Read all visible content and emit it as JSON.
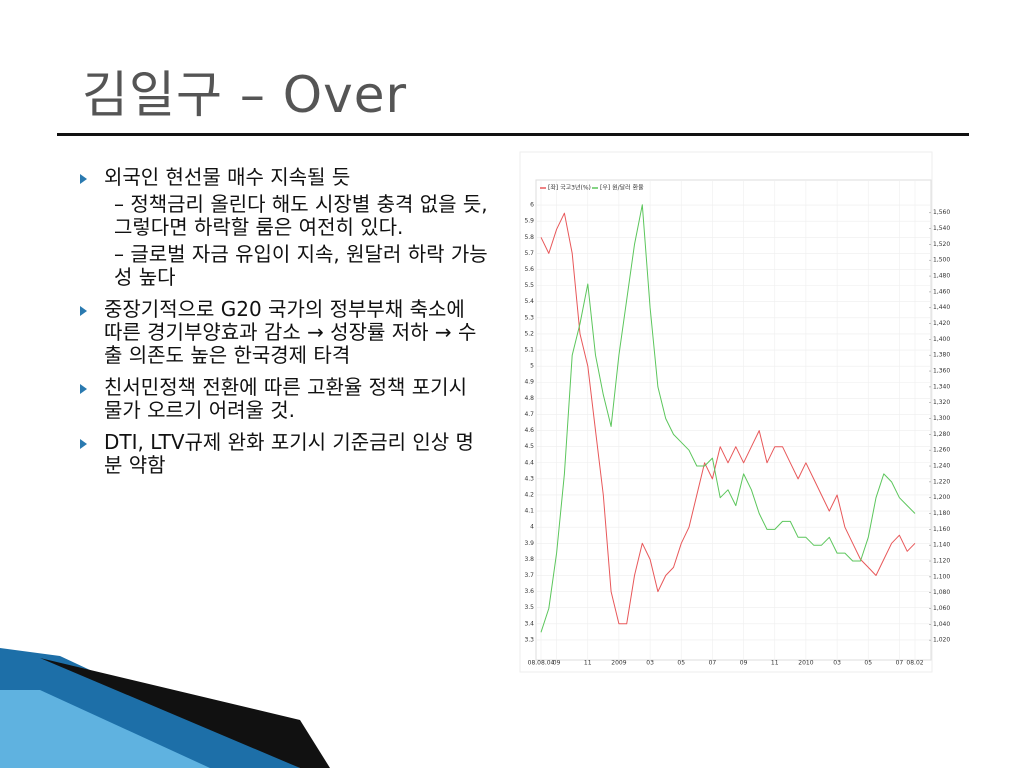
{
  "slide": {
    "title": "김일구 – Over",
    "bullets": [
      {
        "text": "외국인 현선물 매수 지속될 듯",
        "subs": [
          "– 정책금리 올린다 해도 시장별 충격 없을 듯, 그렇다면 하락할 룸은 여전히 있다.",
          "– 글로벌 자금 유입이 지속, 원달러 하락 가능성 높다"
        ]
      },
      {
        "text": "중장기적으로 G20 국가의 정부부채 축소에 따른 경기부양효과 감소 → 성장률 저하 → 수출 의존도 높은 한국경제 타격"
      },
      {
        "text": "친서민정책 전환에 따른 고환율 정책 포기시 물가 오르기 어려울 것."
      },
      {
        "text": "DTI, LTV규제 완화 포기시 기준금리 인상 명분 약함"
      }
    ]
  },
  "chart_data": {
    "type": "line",
    "x": [
      0,
      1,
      2,
      3,
      4,
      5,
      6,
      7,
      8,
      9,
      10,
      11,
      12,
      13,
      14,
      15,
      16,
      17,
      18,
      19,
      20,
      21,
      22,
      23,
      24,
      25,
      26,
      27,
      28,
      29,
      30,
      31,
      32,
      33,
      34,
      35,
      36,
      37,
      38,
      39,
      40,
      41,
      42,
      43,
      44,
      45,
      46,
      47,
      48
    ],
    "xlim": [
      0,
      48
    ],
    "xticks": [
      {
        "value": 0,
        "label": "08.08.04"
      },
      {
        "value": 2,
        "label": "09"
      },
      {
        "value": 6,
        "label": "11"
      },
      {
        "value": 10,
        "label": "2009"
      },
      {
        "value": 14,
        "label": "03"
      },
      {
        "value": 18,
        "label": "05"
      },
      {
        "value": 22,
        "label": "07"
      },
      {
        "value": 26,
        "label": "09"
      },
      {
        "value": 30,
        "label": "11"
      },
      {
        "value": 34,
        "label": "2010"
      },
      {
        "value": 38,
        "label": "03"
      },
      {
        "value": 42,
        "label": "05"
      },
      {
        "value": 46,
        "label": "07"
      },
      {
        "value": 48,
        "label": "08.02"
      }
    ],
    "ylim": [
      3.2,
      6.1
    ],
    "yticks": [
      3.3,
      3.4,
      3.5,
      3.6,
      3.7,
      3.8,
      3.9,
      4,
      4.1,
      4.2,
      4.3,
      4.4,
      4.5,
      4.6,
      4.7,
      4.8,
      4.9,
      5,
      5.1,
      5.2,
      5.3,
      5.4,
      5.5,
      5.6,
      5.7,
      5.8,
      5.9,
      6
    ],
    "y2lim": [
      1000,
      1590
    ],
    "y2ticks": [
      {
        "value": 1020,
        "label": "1,020"
      },
      {
        "value": 1040,
        "label": "1,040"
      },
      {
        "value": 1060,
        "label": "1,060"
      },
      {
        "value": 1080,
        "label": "1,080"
      },
      {
        "value": 1100,
        "label": "1,100"
      },
      {
        "value": 1120,
        "label": "1,120"
      },
      {
        "value": 1140,
        "label": "1,140"
      },
      {
        "value": 1160,
        "label": "1,160"
      },
      {
        "value": 1180,
        "label": "1,180"
      },
      {
        "value": 1200,
        "label": "1,200"
      },
      {
        "value": 1220,
        "label": "1,220"
      },
      {
        "value": 1240,
        "label": "1,240"
      },
      {
        "value": 1260,
        "label": "1,260"
      },
      {
        "value": 1280,
        "label": "1,280"
      },
      {
        "value": 1300,
        "label": "1,300"
      },
      {
        "value": 1320,
        "label": "1,320"
      },
      {
        "value": 1340,
        "label": "1,340"
      },
      {
        "value": 1360,
        "label": "1,360"
      },
      {
        "value": 1380,
        "label": "1,380"
      },
      {
        "value": 1400,
        "label": "1,400"
      },
      {
        "value": 1420,
        "label": "1,420"
      },
      {
        "value": 1440,
        "label": "1,440"
      },
      {
        "value": 1460,
        "label": "1,460"
      },
      {
        "value": 1480,
        "label": "1,480"
      },
      {
        "value": 1500,
        "label": "1,500"
      },
      {
        "value": 1520,
        "label": "1,520"
      },
      {
        "value": 1540,
        "label": "1,540"
      },
      {
        "value": 1560,
        "label": "1,560"
      }
    ],
    "grid": true,
    "series": [
      {
        "name": "[좌] 국고3년(%)",
        "color": "#e8585a",
        "axis": "y",
        "values": [
          5.8,
          5.7,
          5.85,
          5.95,
          5.7,
          5.2,
          5.0,
          4.6,
          4.2,
          3.6,
          3.4,
          3.4,
          3.7,
          3.9,
          3.8,
          3.6,
          3.7,
          3.75,
          3.9,
          4.0,
          4.2,
          4.4,
          4.3,
          4.5,
          4.4,
          4.5,
          4.4,
          4.5,
          4.6,
          4.4,
          4.5,
          4.5,
          4.4,
          4.3,
          4.4,
          4.3,
          4.2,
          4.1,
          4.2,
          4.0,
          3.9,
          3.8,
          3.75,
          3.7,
          3.8,
          3.9,
          3.95,
          3.85,
          3.9
        ]
      },
      {
        "name": "[우] 원/달러 환율",
        "color": "#5cc65c",
        "axis": "y2",
        "values": [
          1030,
          1060,
          1130,
          1230,
          1380,
          1420,
          1470,
          1380,
          1330,
          1290,
          1380,
          1450,
          1520,
          1570,
          1440,
          1340,
          1300,
          1280,
          1270,
          1260,
          1240,
          1240,
          1250,
          1200,
          1210,
          1190,
          1230,
          1210,
          1180,
          1160,
          1160,
          1170,
          1170,
          1150,
          1150,
          1140,
          1140,
          1150,
          1130,
          1130,
          1120,
          1120,
          1150,
          1200,
          1230,
          1220,
          1200,
          1190,
          1180
        ]
      }
    ]
  }
}
